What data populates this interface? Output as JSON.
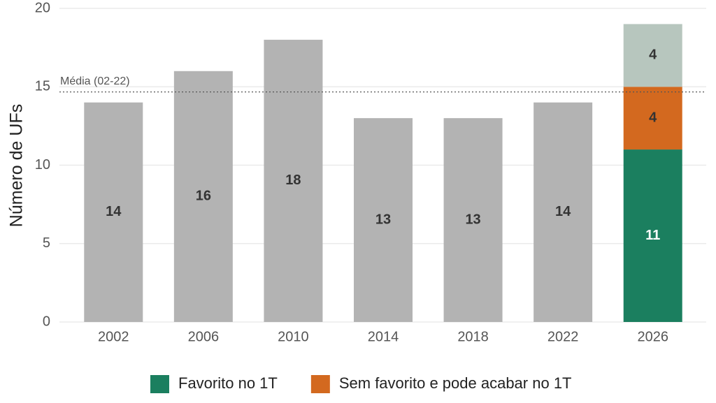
{
  "chart_data": {
    "type": "bar",
    "stacked": true,
    "y_label": "Número de UFs",
    "categories": [
      "2002",
      "2006",
      "2010",
      "2014",
      "2018",
      "2022",
      "2026"
    ],
    "series": [
      {
        "color": "#b3b3b3",
        "values": [
          14,
          16,
          18,
          13,
          13,
          14,
          null
        ]
      },
      {
        "name": "Favorito no 1T",
        "color": "#1b7f5f",
        "values": [
          null,
          null,
          null,
          null,
          null,
          null,
          11
        ]
      },
      {
        "name": "Sem favorito e pode acabar no 1T",
        "color": "#d3691f",
        "values": [
          null,
          null,
          null,
          null,
          null,
          null,
          4
        ]
      },
      {
        "color": "#b7c6be",
        "values": [
          null,
          null,
          null,
          null,
          null,
          null,
          4
        ]
      }
    ],
    "ylim": [
      0,
      20
    ],
    "yticks": [
      0,
      5,
      10,
      15,
      20
    ],
    "grid": true,
    "reference_line": {
      "value": 14.67,
      "label": "Média (02-22)"
    }
  }
}
